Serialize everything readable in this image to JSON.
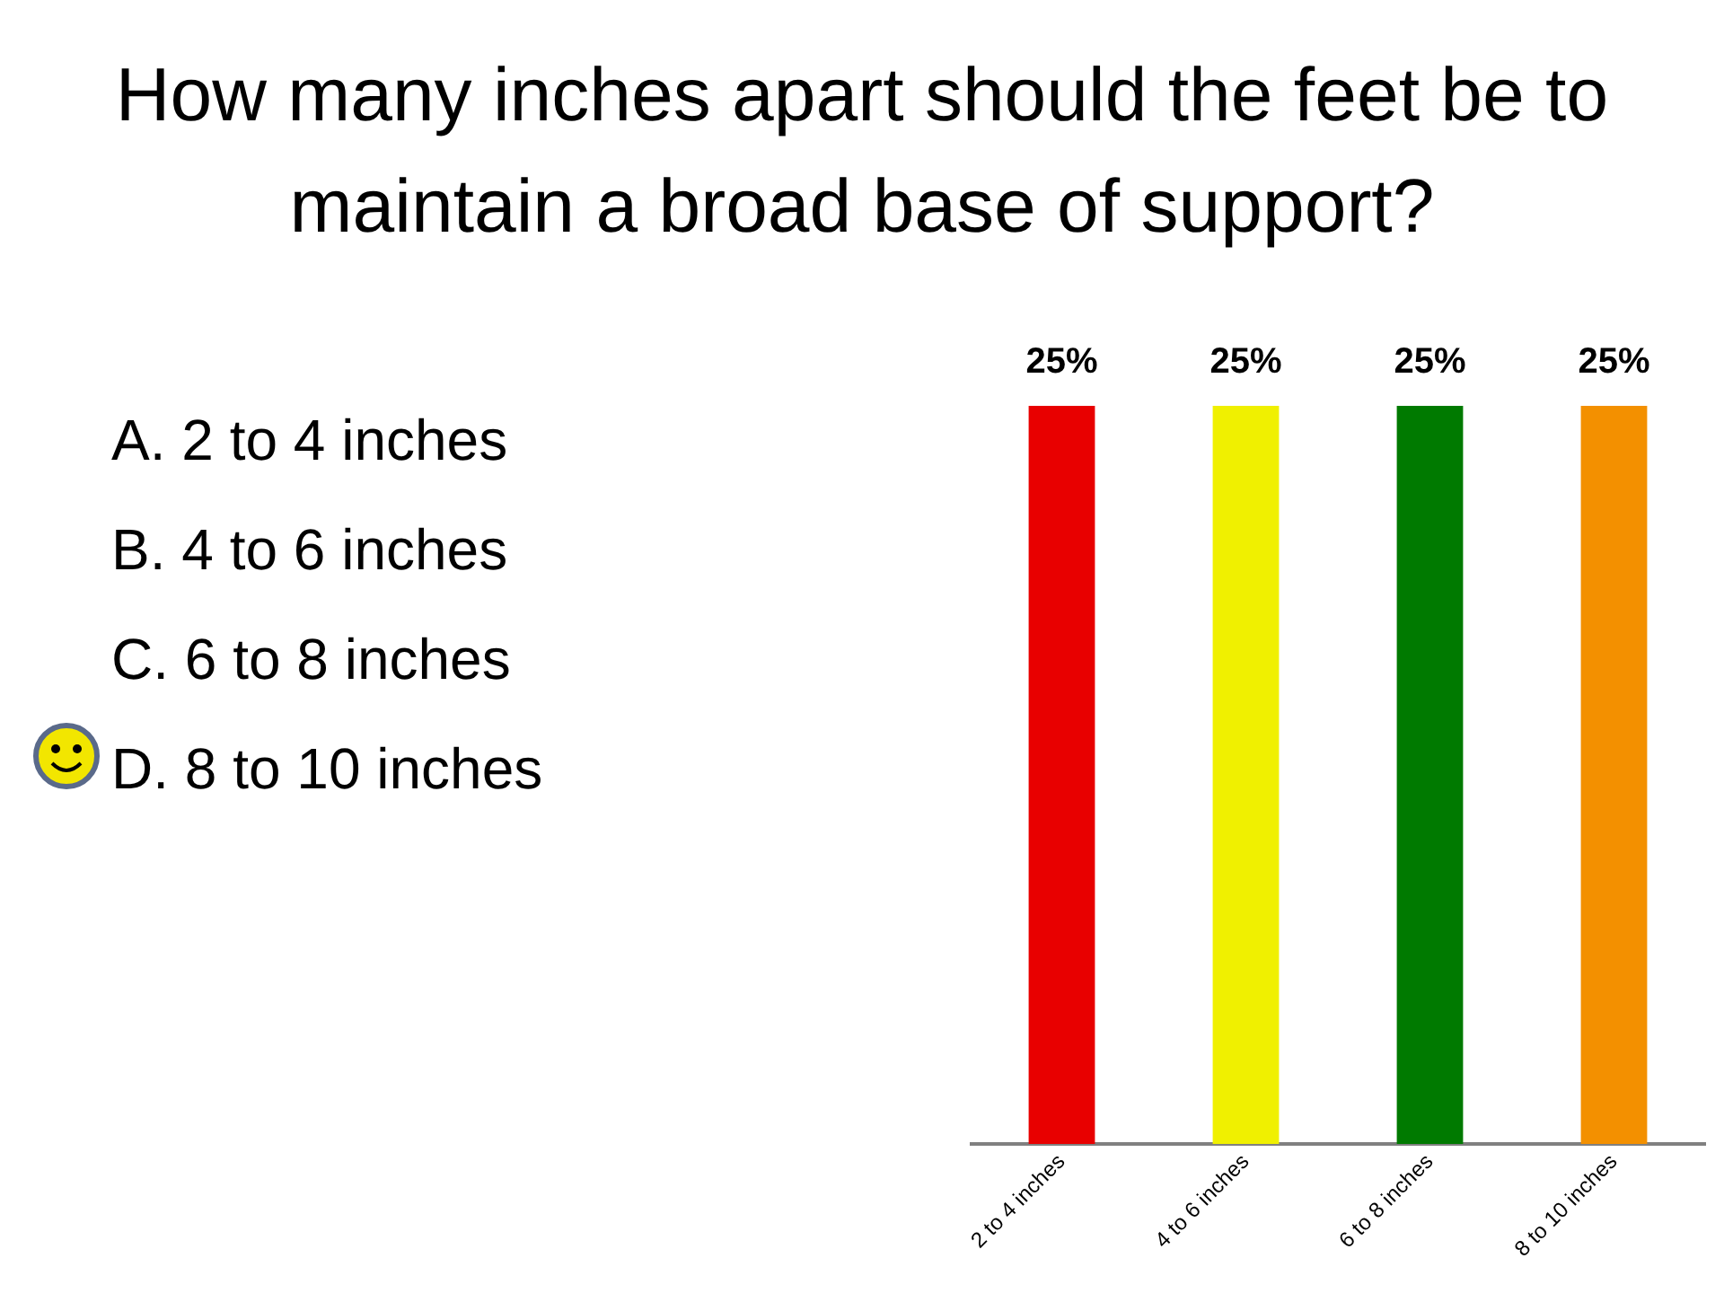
{
  "chart_data": {
    "type": "bar",
    "title": "How many inches apart should the feet be to maintain a broad base of support?",
    "categories": [
      "2 to 4 inches",
      "4 to 6 inches",
      "6 to 8 inches",
      "8 to 10 inches"
    ],
    "values": [
      25,
      25,
      25,
      25
    ],
    "value_labels": [
      "25%",
      "25%",
      "25%",
      "25%"
    ],
    "colors": [
      "#e80000",
      "#f0f000",
      "#007a00",
      "#f39000"
    ],
    "annotations": [
      "A.  2 to 4 inches",
      "B.  4 to 6 inches",
      "C.  6 to 8 inches",
      "D.  8 to 10 inches"
    ],
    "grid": false,
    "legend": false
  }
}
